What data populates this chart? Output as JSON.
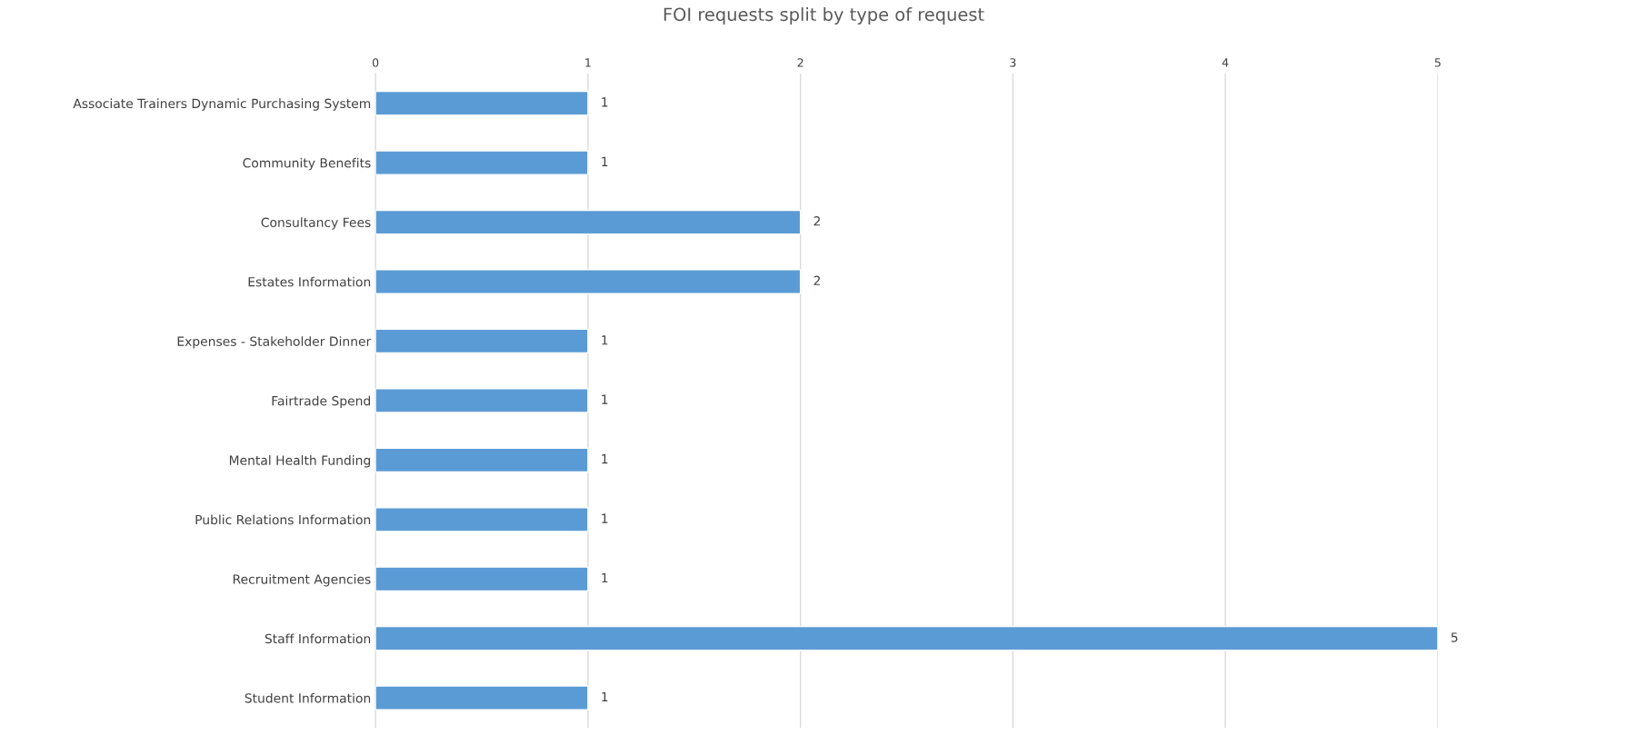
{
  "chart_data": {
    "type": "bar",
    "orientation": "horizontal",
    "title": "FOI requests split by type of request",
    "categories": [
      "Associate Trainers Dynamic Purchasing System",
      "Community Benefits",
      "Consultancy Fees",
      "Estates Information",
      "Expenses - Stakeholder Dinner",
      "Fairtrade Spend",
      "Mental Health Funding",
      "Public Relations Information",
      "Recruitment Agencies",
      "Staff Information",
      "Student Information"
    ],
    "values": [
      1,
      1,
      2,
      2,
      1,
      1,
      1,
      1,
      1,
      5,
      1
    ],
    "color": "#5b9bd5",
    "xlim": [
      0,
      5
    ],
    "xticks": [
      0,
      1,
      2,
      3,
      4,
      5
    ],
    "grid": "x",
    "data_labels": true,
    "legend": false
  }
}
